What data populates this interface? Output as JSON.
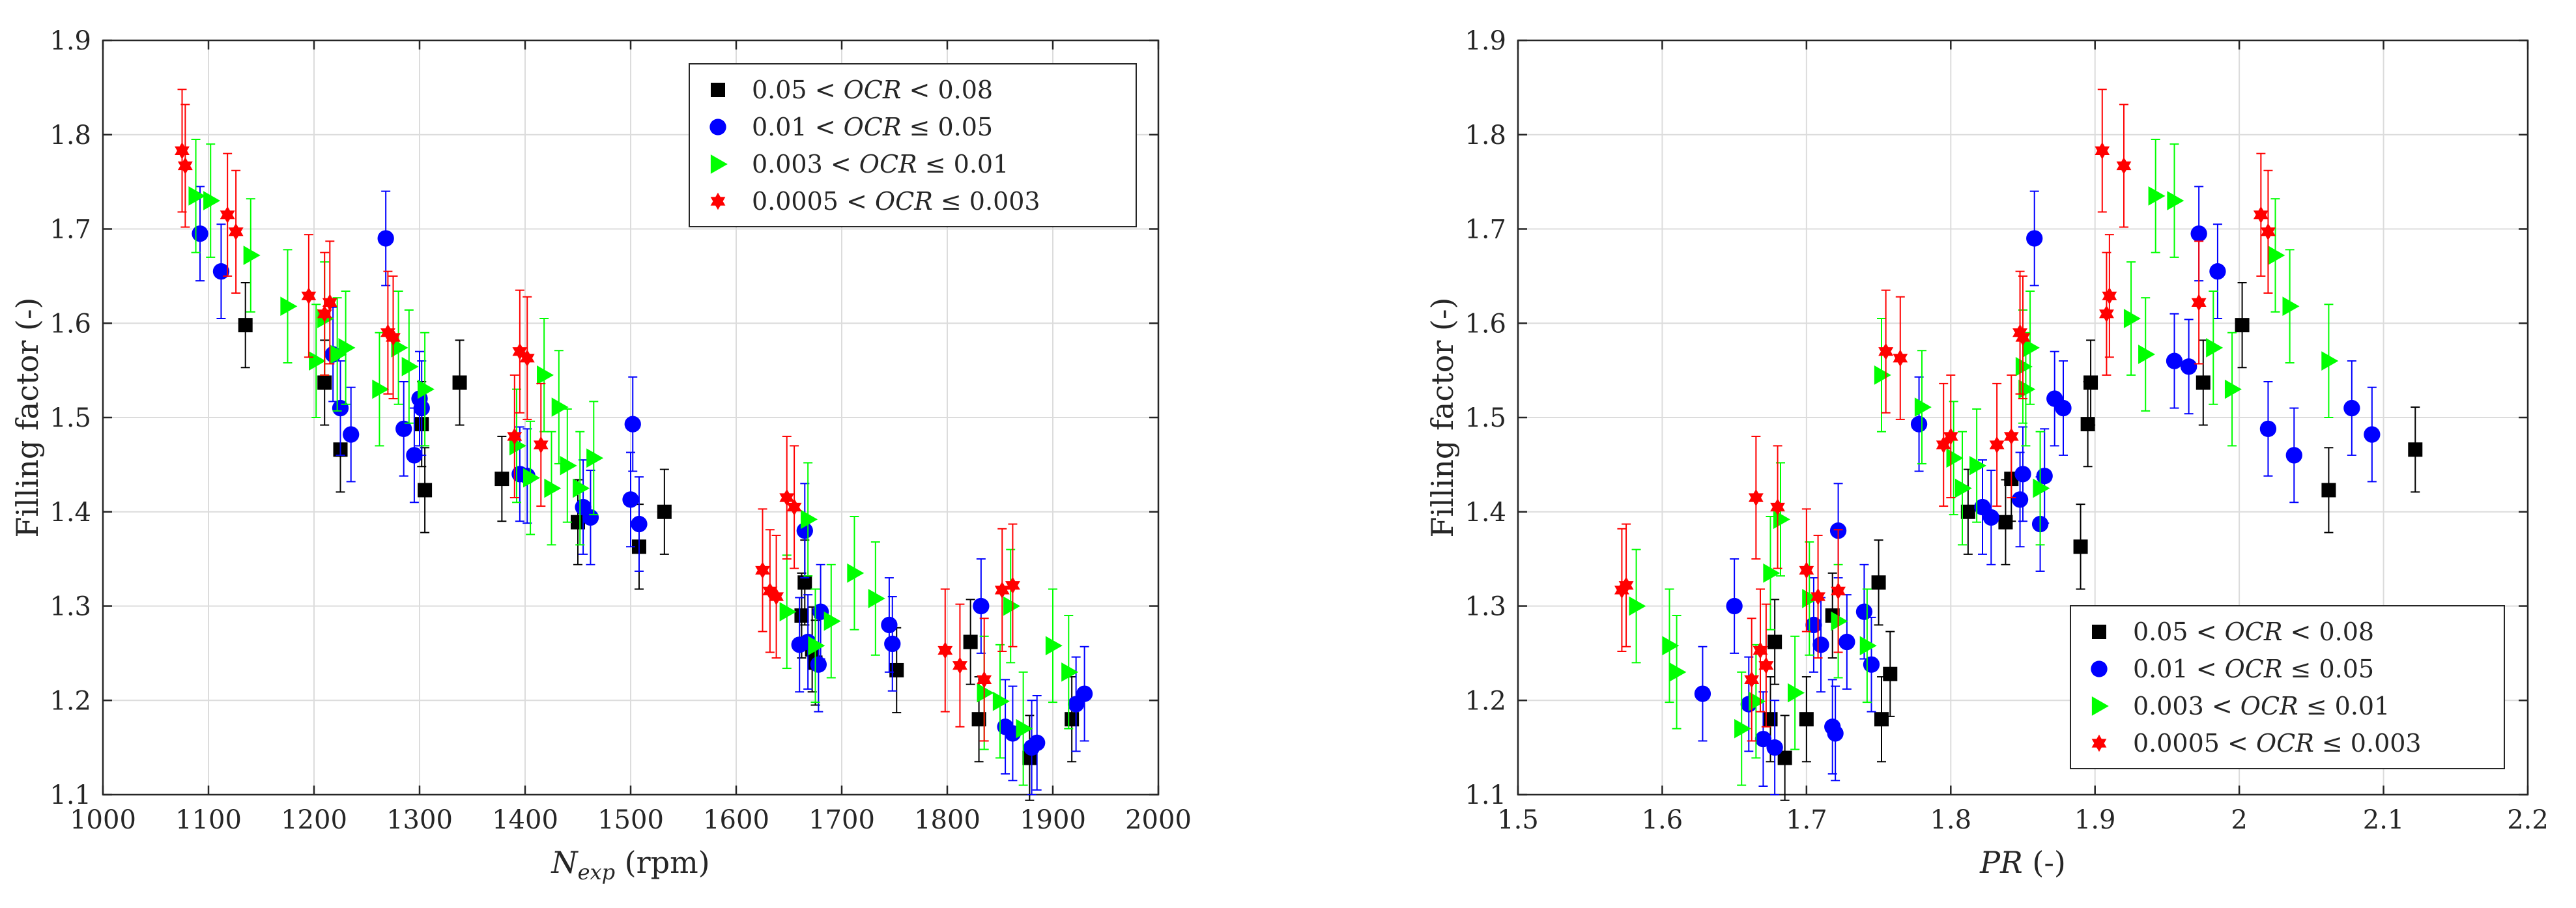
{
  "chart_data": [
    {
      "type": "scatter",
      "id": "left",
      "xlabel_main": "N",
      "xlabel_sub": "exp",
      "xlabel_unit": " (rpm)",
      "ylabel": "Filling factor (-)",
      "xlim": [
        1000,
        2000
      ],
      "ylim": [
        1.1,
        1.9
      ],
      "xticks": [
        1000,
        1100,
        1200,
        1300,
        1400,
        1500,
        1600,
        1700,
        1800,
        1900,
        2000
      ],
      "yticks": [
        1.1,
        1.2,
        1.3,
        1.4,
        1.5,
        1.6,
        1.7,
        1.8,
        1.9
      ],
      "xtick_labels": [
        "1000",
        "1100",
        "1200",
        "1300",
        "1400",
        "1500",
        "1600",
        "1700",
        "1800",
        "1900",
        "2000"
      ],
      "ytick_labels": [
        "1.1",
        "1.2",
        "1.3",
        "1.4",
        "1.5",
        "1.6",
        "1.7",
        "1.8",
        "1.9"
      ],
      "grid": true,
      "legend_position": "top-right",
      "series": [
        {
          "name": "0.05 < OCR < 0.08",
          "legend_pre": "0.05 < ",
          "legend_var": "OCR",
          "legend_post": " < 0.08",
          "marker": "square",
          "color": "#000000",
          "err": 0.045,
          "points": [
            [
              1135,
              1.598
            ],
            [
              1210,
              1.537
            ],
            [
              1225,
              1.466
            ],
            [
              1302,
              1.493
            ],
            [
              1305,
              1.423
            ],
            [
              1338,
              1.537
            ],
            [
              1378,
              1.435
            ],
            [
              1450,
              1.389
            ],
            [
              1508,
              1.363
            ],
            [
              1532,
              1.4
            ],
            [
              1662,
              1.29
            ],
            [
              1665,
              1.325
            ],
            [
              1672,
              1.254
            ],
            [
              1675,
              1.24
            ],
            [
              1752,
              1.232
            ],
            [
              1822,
              1.262
            ],
            [
              1830,
              1.18
            ],
            [
              1878,
              1.139
            ],
            [
              1918,
              1.18
            ]
          ]
        },
        {
          "name": "0.01 < OCR ≤ 0.05",
          "legend_pre": "0.01 < ",
          "legend_var": "OCR",
          "legend_post": " ≤ 0.05",
          "marker": "circle",
          "color": "#0000ff",
          "err": 0.05,
          "points": [
            [
              1092,
              1.695
            ],
            [
              1112,
              1.655
            ],
            [
              1218,
              1.567
            ],
            [
              1225,
              1.51
            ],
            [
              1235,
              1.482
            ],
            [
              1268,
              1.69
            ],
            [
              1285,
              1.488
            ],
            [
              1295,
              1.46
            ],
            [
              1300,
              1.52
            ],
            [
              1302,
              1.51
            ],
            [
              1395,
              1.44
            ],
            [
              1402,
              1.438
            ],
            [
              1455,
              1.405
            ],
            [
              1462,
              1.394
            ],
            [
              1500,
              1.413
            ],
            [
              1502,
              1.493
            ],
            [
              1508,
              1.387
            ],
            [
              1660,
              1.259
            ],
            [
              1665,
              1.38
            ],
            [
              1668,
              1.262
            ],
            [
              1678,
              1.238
            ],
            [
              1680,
              1.294
            ],
            [
              1745,
              1.28
            ],
            [
              1748,
              1.26
            ],
            [
              1832,
              1.3
            ],
            [
              1855,
              1.172
            ],
            [
              1862,
              1.165
            ],
            [
              1880,
              1.15
            ],
            [
              1885,
              1.155
            ],
            [
              1922,
              1.196
            ],
            [
              1930,
              1.207
            ]
          ]
        },
        {
          "name": "0.003 < OCR ≤ 0.01",
          "legend_pre": "0.003 < ",
          "legend_var": "OCR",
          "legend_post": " ≤ 0.01",
          "marker": "triangle-right",
          "color": "#00ff00",
          "err": 0.06,
          "points": [
            [
              1088,
              1.735
            ],
            [
              1102,
              1.73
            ],
            [
              1140,
              1.672
            ],
            [
              1175,
              1.618
            ],
            [
              1202,
              1.56
            ],
            [
              1210,
              1.605
            ],
            [
              1222,
              1.567
            ],
            [
              1230,
              1.574
            ],
            [
              1262,
              1.53
            ],
            [
              1280,
              1.574
            ],
            [
              1290,
              1.554
            ],
            [
              1305,
              1.53
            ],
            [
              1392,
              1.47
            ],
            [
              1405,
              1.436
            ],
            [
              1418,
              1.545
            ],
            [
              1425,
              1.425
            ],
            [
              1432,
              1.511
            ],
            [
              1440,
              1.449
            ],
            [
              1452,
              1.425
            ],
            [
              1465,
              1.457
            ],
            [
              1648,
              1.294
            ],
            [
              1668,
              1.392
            ],
            [
              1675,
              1.258
            ],
            [
              1690,
              1.284
            ],
            [
              1712,
              1.335
            ],
            [
              1732,
              1.308
            ],
            [
              1835,
              1.208
            ],
            [
              1850,
              1.199
            ],
            [
              1860,
              1.3
            ],
            [
              1872,
              1.17
            ],
            [
              1900,
              1.258
            ],
            [
              1915,
              1.23
            ]
          ]
        },
        {
          "name": "0.0005 < OCR ≤ 0.003",
          "legend_pre": "0.0005 < ",
          "legend_var": "OCR",
          "legend_post": " ≤ 0.003",
          "marker": "hexagram",
          "color": "#ff0000",
          "err": 0.065,
          "points": [
            [
              1075,
              1.783
            ],
            [
              1078,
              1.767
            ],
            [
              1118,
              1.715
            ],
            [
              1126,
              1.697
            ],
            [
              1195,
              1.629
            ],
            [
              1210,
              1.61
            ],
            [
              1215,
              1.622
            ],
            [
              1270,
              1.59
            ],
            [
              1275,
              1.585
            ],
            [
              1390,
              1.48
            ],
            [
              1395,
              1.57
            ],
            [
              1402,
              1.563
            ],
            [
              1415,
              1.471
            ],
            [
              1625,
              1.338
            ],
            [
              1632,
              1.316
            ],
            [
              1638,
              1.31
            ],
            [
              1648,
              1.415
            ],
            [
              1655,
              1.405
            ],
            [
              1798,
              1.253
            ],
            [
              1812,
              1.237
            ],
            [
              1835,
              1.222
            ],
            [
              1852,
              1.317
            ],
            [
              1862,
              1.322
            ]
          ]
        }
      ]
    },
    {
      "type": "scatter",
      "id": "right",
      "xlabel_main": "PR",
      "xlabel_unit": " (-)",
      "ylabel": "Filling factor (-)",
      "xlim": [
        1.5,
        2.2
      ],
      "ylim": [
        1.1,
        1.9
      ],
      "xticks": [
        1.5,
        1.6,
        1.7,
        1.8,
        1.9,
        2.0,
        2.1,
        2.2
      ],
      "yticks": [
        1.1,
        1.2,
        1.3,
        1.4,
        1.5,
        1.6,
        1.7,
        1.8,
        1.9
      ],
      "xtick_labels": [
        "1.5",
        "1.6",
        "1.7",
        "1.8",
        "1.9",
        "2",
        "2.1",
        "2.2"
      ],
      "ytick_labels": [
        "1.1",
        "1.2",
        "1.3",
        "1.4",
        "1.5",
        "1.6",
        "1.7",
        "1.8",
        "1.9"
      ],
      "grid": true,
      "legend_position": "bottom-right",
      "series": [
        {
          "name": "0.05 < OCR < 0.08",
          "legend_pre": "0.05 < ",
          "legend_var": "OCR",
          "legend_post": " < 0.08",
          "marker": "square",
          "color": "#000000",
          "err": 0.045,
          "points": [
            [
              1.675,
              1.18
            ],
            [
              1.678,
              1.262
            ],
            [
              1.685,
              1.139
            ],
            [
              1.7,
              1.18
            ],
            [
              1.718,
              1.29
            ],
            [
              1.75,
              1.325
            ],
            [
              1.752,
              1.18
            ],
            [
              1.758,
              1.228
            ],
            [
              1.812,
              1.4
            ],
            [
              1.838,
              1.389
            ],
            [
              1.842,
              1.435
            ],
            [
              1.89,
              1.363
            ],
            [
              1.895,
              1.493
            ],
            [
              1.897,
              1.537
            ],
            [
              1.975,
              1.537
            ],
            [
              2.002,
              1.598
            ],
            [
              2.062,
              1.423
            ],
            [
              2.122,
              1.466
            ]
          ]
        },
        {
          "name": "0.01 < OCR ≤ 0.05",
          "legend_pre": "0.01 < ",
          "legend_var": "OCR",
          "legend_post": " ≤ 0.05",
          "marker": "circle",
          "color": "#0000ff",
          "err": 0.05,
          "points": [
            [
              1.628,
              1.207
            ],
            [
              1.65,
              1.3
            ],
            [
              1.66,
              1.196
            ],
            [
              1.67,
              1.159
            ],
            [
              1.678,
              1.15
            ],
            [
              1.705,
              1.28
            ],
            [
              1.71,
              1.259
            ],
            [
              1.718,
              1.172
            ],
            [
              1.72,
              1.165
            ],
            [
              1.722,
              1.38
            ],
            [
              1.728,
              1.262
            ],
            [
              1.74,
              1.294
            ],
            [
              1.745,
              1.238
            ],
            [
              1.778,
              1.493
            ],
            [
              1.822,
              1.405
            ],
            [
              1.828,
              1.394
            ],
            [
              1.848,
              1.413
            ],
            [
              1.85,
              1.44
            ],
            [
              1.858,
              1.69
            ],
            [
              1.862,
              1.387
            ],
            [
              1.865,
              1.438
            ],
            [
              1.872,
              1.52
            ],
            [
              1.878,
              1.51
            ],
            [
              1.955,
              1.56
            ],
            [
              1.965,
              1.554
            ],
            [
              1.972,
              1.695
            ],
            [
              1.985,
              1.655
            ],
            [
              2.02,
              1.488
            ],
            [
              2.038,
              1.46
            ],
            [
              2.078,
              1.51
            ],
            [
              2.092,
              1.482
            ]
          ]
        },
        {
          "name": "0.003 < OCR ≤ 0.01",
          "legend_pre": "0.003 < ",
          "legend_var": "OCR",
          "legend_post": " ≤ 0.01",
          "marker": "triangle-right",
          "color": "#00ff00",
          "err": 0.06,
          "points": [
            [
              1.582,
              1.3
            ],
            [
              1.605,
              1.258
            ],
            [
              1.61,
              1.23
            ],
            [
              1.655,
              1.17
            ],
            [
              1.665,
              1.199
            ],
            [
              1.675,
              1.335
            ],
            [
              1.682,
              1.392
            ],
            [
              1.692,
              1.208
            ],
            [
              1.702,
              1.308
            ],
            [
              1.722,
              1.284
            ],
            [
              1.742,
              1.258
            ],
            [
              1.752,
              1.545
            ],
            [
              1.78,
              1.511
            ],
            [
              1.802,
              1.457
            ],
            [
              1.808,
              1.425
            ],
            [
              1.818,
              1.449
            ],
            [
              1.85,
              1.554
            ],
            [
              1.852,
              1.53
            ],
            [
              1.855,
              1.574
            ],
            [
              1.862,
              1.425
            ],
            [
              1.925,
              1.605
            ],
            [
              1.935,
              1.567
            ],
            [
              1.942,
              1.735
            ],
            [
              1.955,
              1.73
            ],
            [
              1.982,
              1.574
            ],
            [
              1.995,
              1.53
            ],
            [
              2.025,
              1.672
            ],
            [
              2.035,
              1.618
            ],
            [
              2.062,
              1.56
            ]
          ]
        },
        {
          "name": "0.0005 < OCR ≤ 0.003",
          "legend_pre": "0.0005 < ",
          "legend_var": "OCR",
          "legend_post": " ≤ 0.003",
          "marker": "hexagram",
          "color": "#ff0000",
          "err": 0.065,
          "points": [
            [
              1.572,
              1.317
            ],
            [
              1.575,
              1.322
            ],
            [
              1.662,
              1.222
            ],
            [
              1.665,
              1.415
            ],
            [
              1.668,
              1.253
            ],
            [
              1.672,
              1.237
            ],
            [
              1.68,
              1.405
            ],
            [
              1.7,
              1.338
            ],
            [
              1.708,
              1.31
            ],
            [
              1.722,
              1.316
            ],
            [
              1.755,
              1.57
            ],
            [
              1.765,
              1.563
            ],
            [
              1.795,
              1.471
            ],
            [
              1.8,
              1.48
            ],
            [
              1.832,
              1.471
            ],
            [
              1.842,
              1.48
            ],
            [
              1.848,
              1.59
            ],
            [
              1.85,
              1.585
            ],
            [
              1.905,
              1.783
            ],
            [
              1.908,
              1.61
            ],
            [
              1.91,
              1.629
            ],
            [
              1.92,
              1.767
            ],
            [
              1.972,
              1.622
            ],
            [
              2.015,
              1.715
            ],
            [
              2.02,
              1.697
            ]
          ]
        }
      ]
    }
  ]
}
